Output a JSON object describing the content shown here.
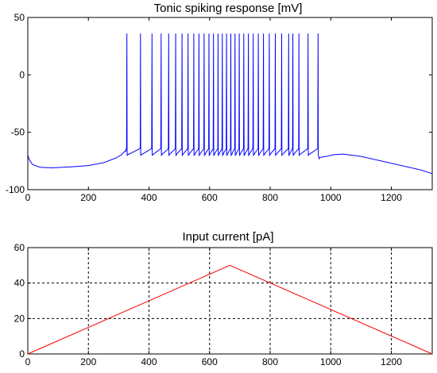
{
  "chart_data": [
    {
      "type": "line",
      "title": "Tonic spiking response [mV]",
      "xlabel": "",
      "ylabel": "",
      "xlim": [
        0,
        1335
      ],
      "ylim": [
        -100,
        50
      ],
      "xticks": [
        0,
        200,
        400,
        600,
        800,
        1000,
        1200
      ],
      "yticks": [
        50,
        0,
        -50,
        -100
      ],
      "grid": false,
      "series": [
        {
          "color": "#0000ff",
          "baseline": [
            [
              0,
              -70
            ],
            [
              5,
              -74
            ],
            [
              15,
              -78
            ],
            [
              40,
              -80.5
            ],
            [
              80,
              -81
            ],
            [
              150,
              -80
            ],
            [
              200,
              -79
            ],
            [
              250,
              -76.5
            ],
            [
              290,
              -72.5
            ],
            [
              310,
              -69.5
            ],
            [
              322,
              -66
            ],
            [
              330,
              -68
            ],
            [
              960,
              -68
            ],
            [
              962,
              -72
            ],
            [
              985,
              -71
            ],
            [
              1010,
              -69.5
            ],
            [
              1040,
              -69
            ],
            [
              1100,
              -71
            ],
            [
              1200,
              -77
            ],
            [
              1300,
              -83
            ],
            [
              1335,
              -86
            ]
          ],
          "spike_times": [
            327,
            372,
            410,
            440,
            465,
            488,
            509,
            529,
            548,
            565,
            582,
            598,
            613,
            628,
            642,
            656,
            670,
            684,
            698,
            713,
            728,
            744,
            761,
            778,
            797,
            817,
            838,
            861,
            875,
            895,
            925,
            958
          ],
          "spike_peak": 36,
          "trough": -70
        }
      ]
    },
    {
      "type": "line",
      "title": "Input current [pA]",
      "xlabel": "",
      "ylabel": "",
      "xlim": [
        0,
        1335
      ],
      "ylim": [
        0,
        60
      ],
      "xticks": [
        0,
        200,
        400,
        600,
        800,
        1000,
        1200
      ],
      "yticks": [
        60,
        40,
        20,
        0
      ],
      "grid": true,
      "series": [
        {
          "color": "#ff0000",
          "x": [
            0,
            667,
            1335
          ],
          "y": [
            0,
            50,
            0
          ]
        }
      ]
    }
  ]
}
